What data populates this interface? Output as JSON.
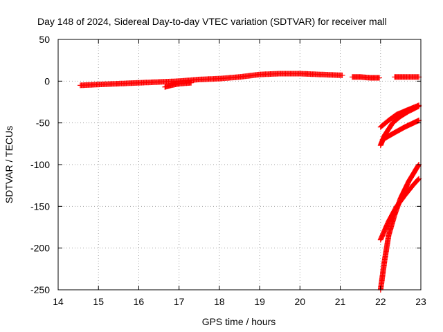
{
  "chart_data": {
    "type": "scatter",
    "title": "Day 148 of 2024, Sidereal Day-to-day VTEC variation (SDTVAR) for receiver mall",
    "xlabel": "GPS time / hours",
    "ylabel": "SDTVAR / TECUs",
    "xlim": [
      14,
      23
    ],
    "ylim": [
      -250,
      50
    ],
    "xticks": [
      14,
      15,
      16,
      17,
      18,
      19,
      20,
      21,
      22,
      23
    ],
    "yticks": [
      50,
      0,
      -50,
      -100,
      -150,
      -200,
      -250
    ],
    "grid": true,
    "marker": "+",
    "colors": {
      "series": "#ff0000"
    },
    "series": [
      {
        "x": [
          14.55,
          15.0,
          15.5,
          16.0,
          16.5,
          17.0,
          17.5,
          18.0,
          18.5,
          19.0,
          19.5,
          20.0,
          20.5,
          21.05
        ],
        "y": [
          -5,
          -4,
          -3,
          -2,
          -1,
          0,
          2,
          3,
          5,
          8,
          9,
          9,
          8,
          7
        ]
      },
      {
        "x": [
          16.65,
          16.8,
          17.0,
          17.3
        ],
        "y": [
          -7,
          -5,
          -3,
          -2
        ]
      },
      {
        "x": [
          21.3,
          21.5,
          21.75,
          21.97
        ],
        "y": [
          5,
          5,
          4,
          4
        ]
      },
      {
        "x": [
          22.35,
          22.6,
          22.95
        ],
        "y": [
          5,
          5,
          5
        ]
      },
      {
        "x": [
          22.0,
          22.2,
          22.4,
          22.6,
          22.8,
          22.95
        ],
        "y": [
          -55,
          -47,
          -40,
          -36,
          -32,
          -29
        ]
      },
      {
        "x": [
          22.0,
          22.1,
          22.3,
          22.5,
          22.7,
          22.95
        ],
        "y": [
          -77,
          -65,
          -50,
          -42,
          -36,
          -30
        ]
      },
      {
        "x": [
          22.05,
          22.3,
          22.6,
          22.95
        ],
        "y": [
          -70,
          -63,
          -55,
          -47
        ]
      },
      {
        "x": [
          22.0,
          22.2,
          22.4,
          22.6,
          22.8,
          22.95
        ],
        "y": [
          -190,
          -168,
          -150,
          -137,
          -125,
          -117
        ]
      },
      {
        "x": [
          22.0,
          22.1,
          22.2,
          22.35,
          22.5,
          22.7,
          22.95
        ],
        "y": [
          -250,
          -215,
          -185,
          -160,
          -140,
          -120,
          -100
        ]
      }
    ]
  }
}
